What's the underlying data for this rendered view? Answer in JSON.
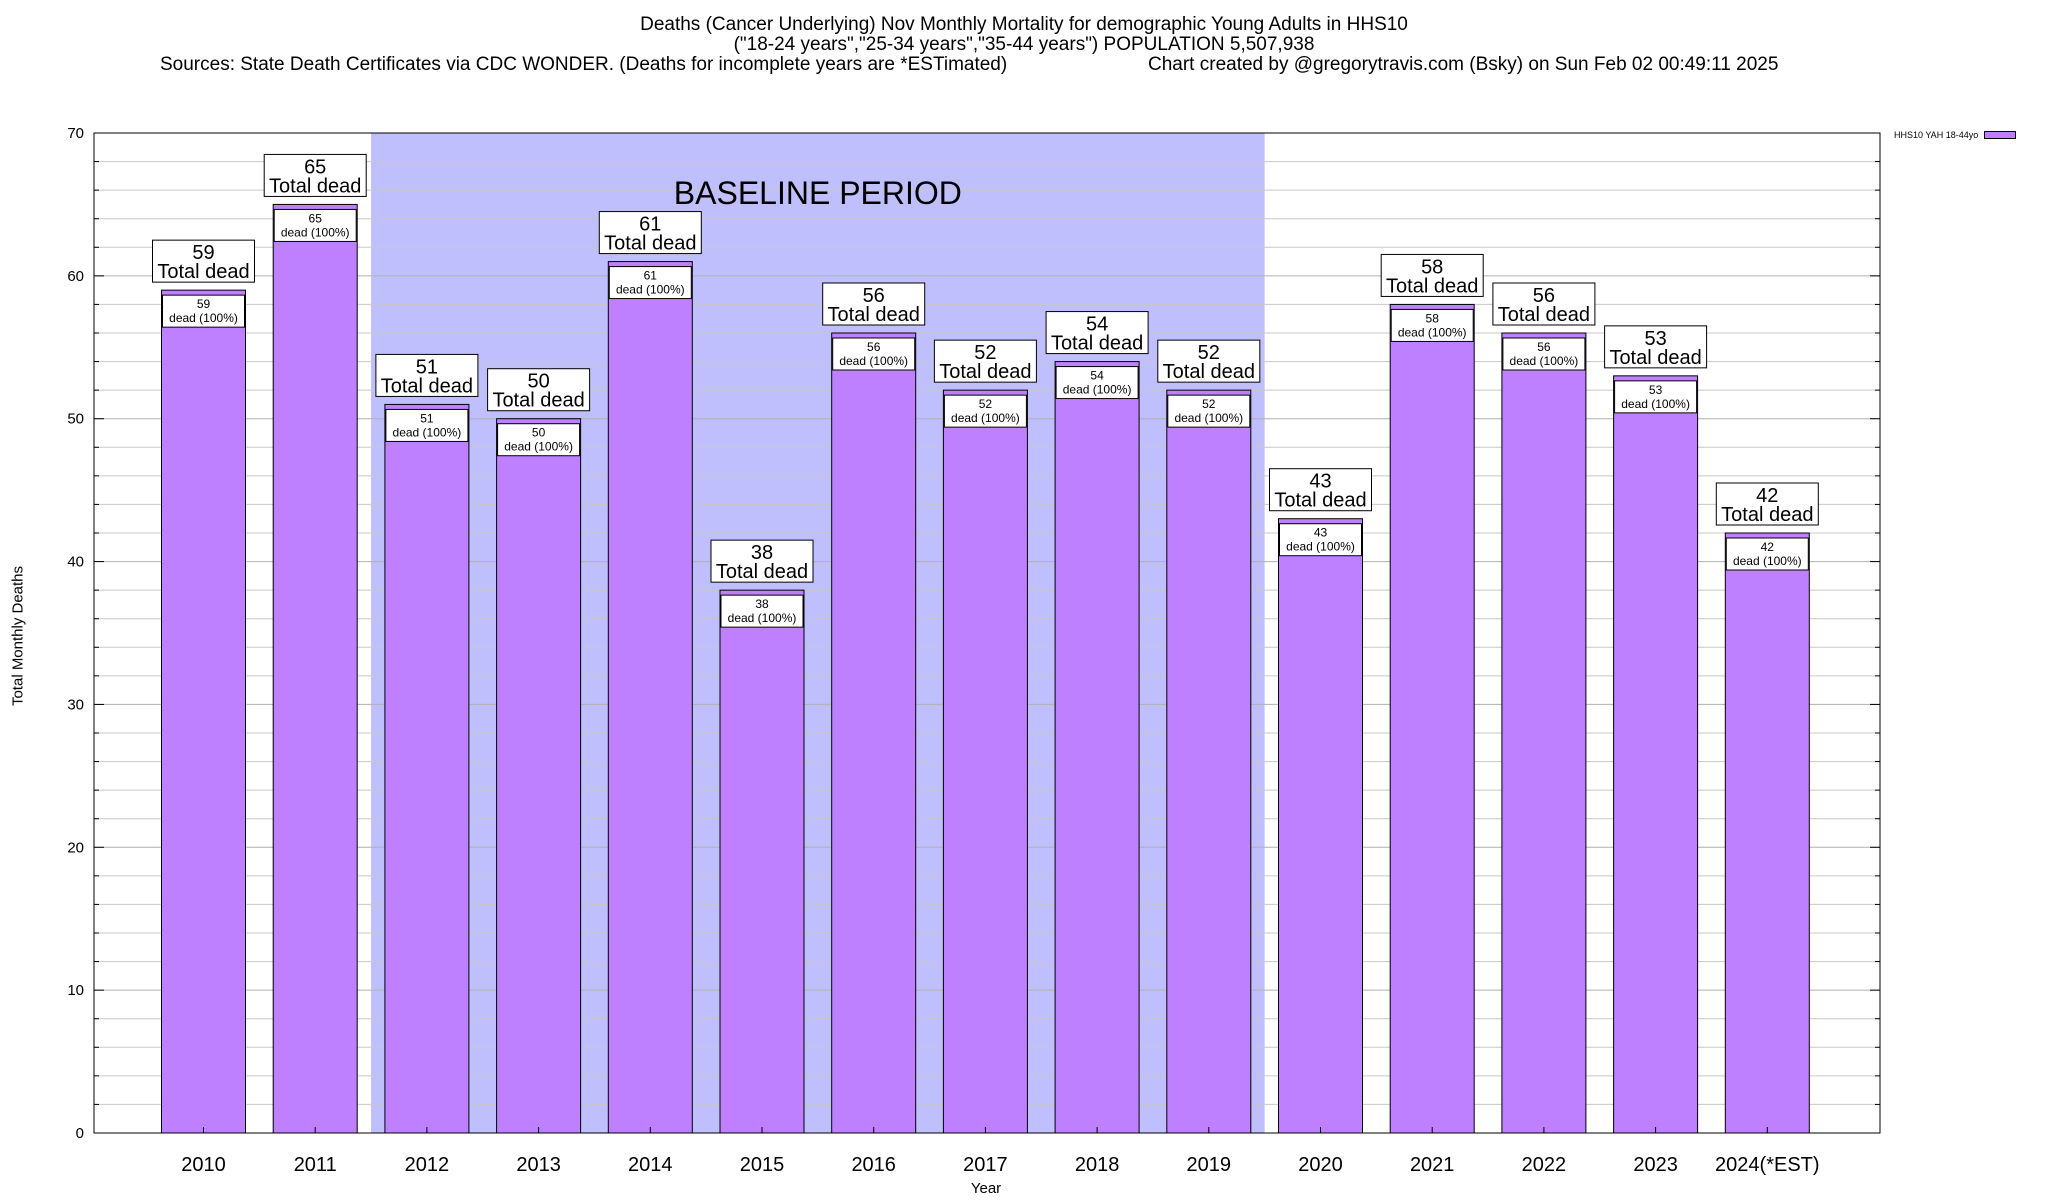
{
  "header": {
    "title_line1": "Deaths (Cancer Underlying) Nov Monthly Mortality for demographic Young Adults in HHS10",
    "title_line2": "(\"18-24 years\",\"25-34 years\",\"35-44 years\") POPULATION 5,507,938",
    "sources": "Sources: State Death Certificates via CDC WONDER. (Deaths for incomplete years are *ESTimated)",
    "credit": "Chart created by @gregorytravis.com (Bsky) on Sun Feb 02 00:49:11 2025"
  },
  "colors": {
    "bar": "#bf80ff",
    "baseline_shade": "#bfbffd",
    "grid": "#c8c8c8"
  },
  "chart_data": {
    "type": "bar",
    "title": "Deaths (Cancer Underlying) Nov Monthly Mortality for demographic Young Adults in HHS10",
    "xlabel": "Year",
    "ylabel": "Total Monthly Deaths",
    "ylim": [
      0,
      70
    ],
    "yticks": [
      0,
      10,
      20,
      30,
      40,
      50,
      60,
      70
    ],
    "grid": true,
    "legend_position": "top-right",
    "categories": [
      "2010",
      "2011",
      "2012",
      "2013",
      "2014",
      "2015",
      "2016",
      "2017",
      "2018",
      "2019",
      "2020",
      "2021",
      "2022",
      "2023",
      "2024(*EST)"
    ],
    "series": [
      {
        "name": "HHS10 YAH 18-44yo",
        "values": [
          59,
          65,
          51,
          50,
          61,
          38,
          56,
          52,
          54,
          52,
          43,
          58,
          56,
          53,
          42
        ]
      }
    ],
    "total_label_suffix": "Total dead",
    "inner_label_suffix": "dead (100%)",
    "baseline_period": {
      "label": "BASELINE PERIOD",
      "start": "2012",
      "end": "2019"
    }
  }
}
